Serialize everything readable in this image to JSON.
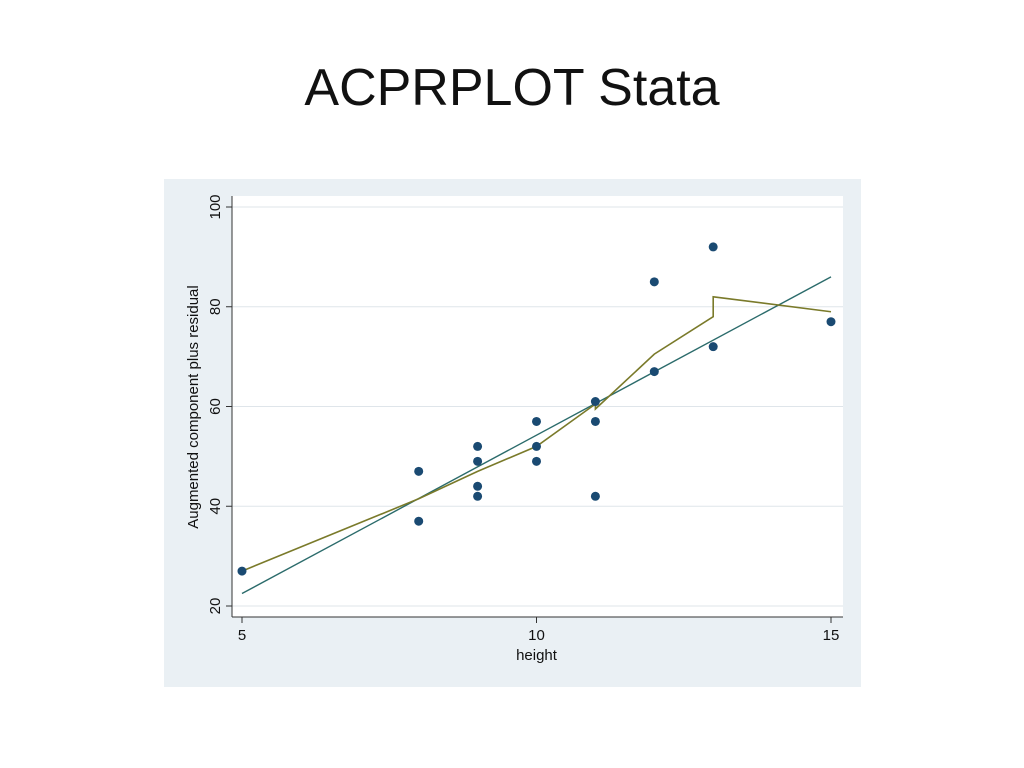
{
  "slide": {
    "title": "ACPRPLOT Stata"
  },
  "chart_data": {
    "type": "scatter",
    "xlabel": "height",
    "ylabel": "Augmented component plus residual",
    "xlim": [
      5,
      15
    ],
    "ylim": [
      20,
      100
    ],
    "xticks": [
      5,
      10,
      15
    ],
    "yticks": [
      20,
      40,
      60,
      80,
      100
    ],
    "grid": true,
    "points": [
      {
        "x": 5,
        "y": 27
      },
      {
        "x": 8,
        "y": 47
      },
      {
        "x": 8,
        "y": 37
      },
      {
        "x": 9,
        "y": 52
      },
      {
        "x": 9,
        "y": 49
      },
      {
        "x": 9,
        "y": 44
      },
      {
        "x": 9,
        "y": 42
      },
      {
        "x": 10,
        "y": 57
      },
      {
        "x": 10,
        "y": 52
      },
      {
        "x": 10,
        "y": 49
      },
      {
        "x": 11,
        "y": 61
      },
      {
        "x": 11,
        "y": 57
      },
      {
        "x": 11,
        "y": 42
      },
      {
        "x": 12,
        "y": 85
      },
      {
        "x": 12,
        "y": 67
      },
      {
        "x": 13,
        "y": 92
      },
      {
        "x": 13,
        "y": 72
      },
      {
        "x": 15,
        "y": 77
      }
    ],
    "fit_line": {
      "x": [
        5,
        15
      ],
      "y": [
        22.5,
        86
      ]
    },
    "smooth_line": {
      "x": [
        5,
        8,
        9,
        10,
        11,
        11,
        12,
        13,
        13,
        15
      ],
      "y": [
        27,
        41.5,
        47,
        52,
        60.5,
        59.5,
        70.5,
        78,
        82,
        79
      ]
    },
    "colors": {
      "points": "#1a4a72",
      "fit_line": "#2b6b6b",
      "smooth_line": "#7a7a2a",
      "grid": "#dfe5ea",
      "plot_bg": "#ffffff",
      "panel_bg": "#eaf0f4"
    }
  }
}
